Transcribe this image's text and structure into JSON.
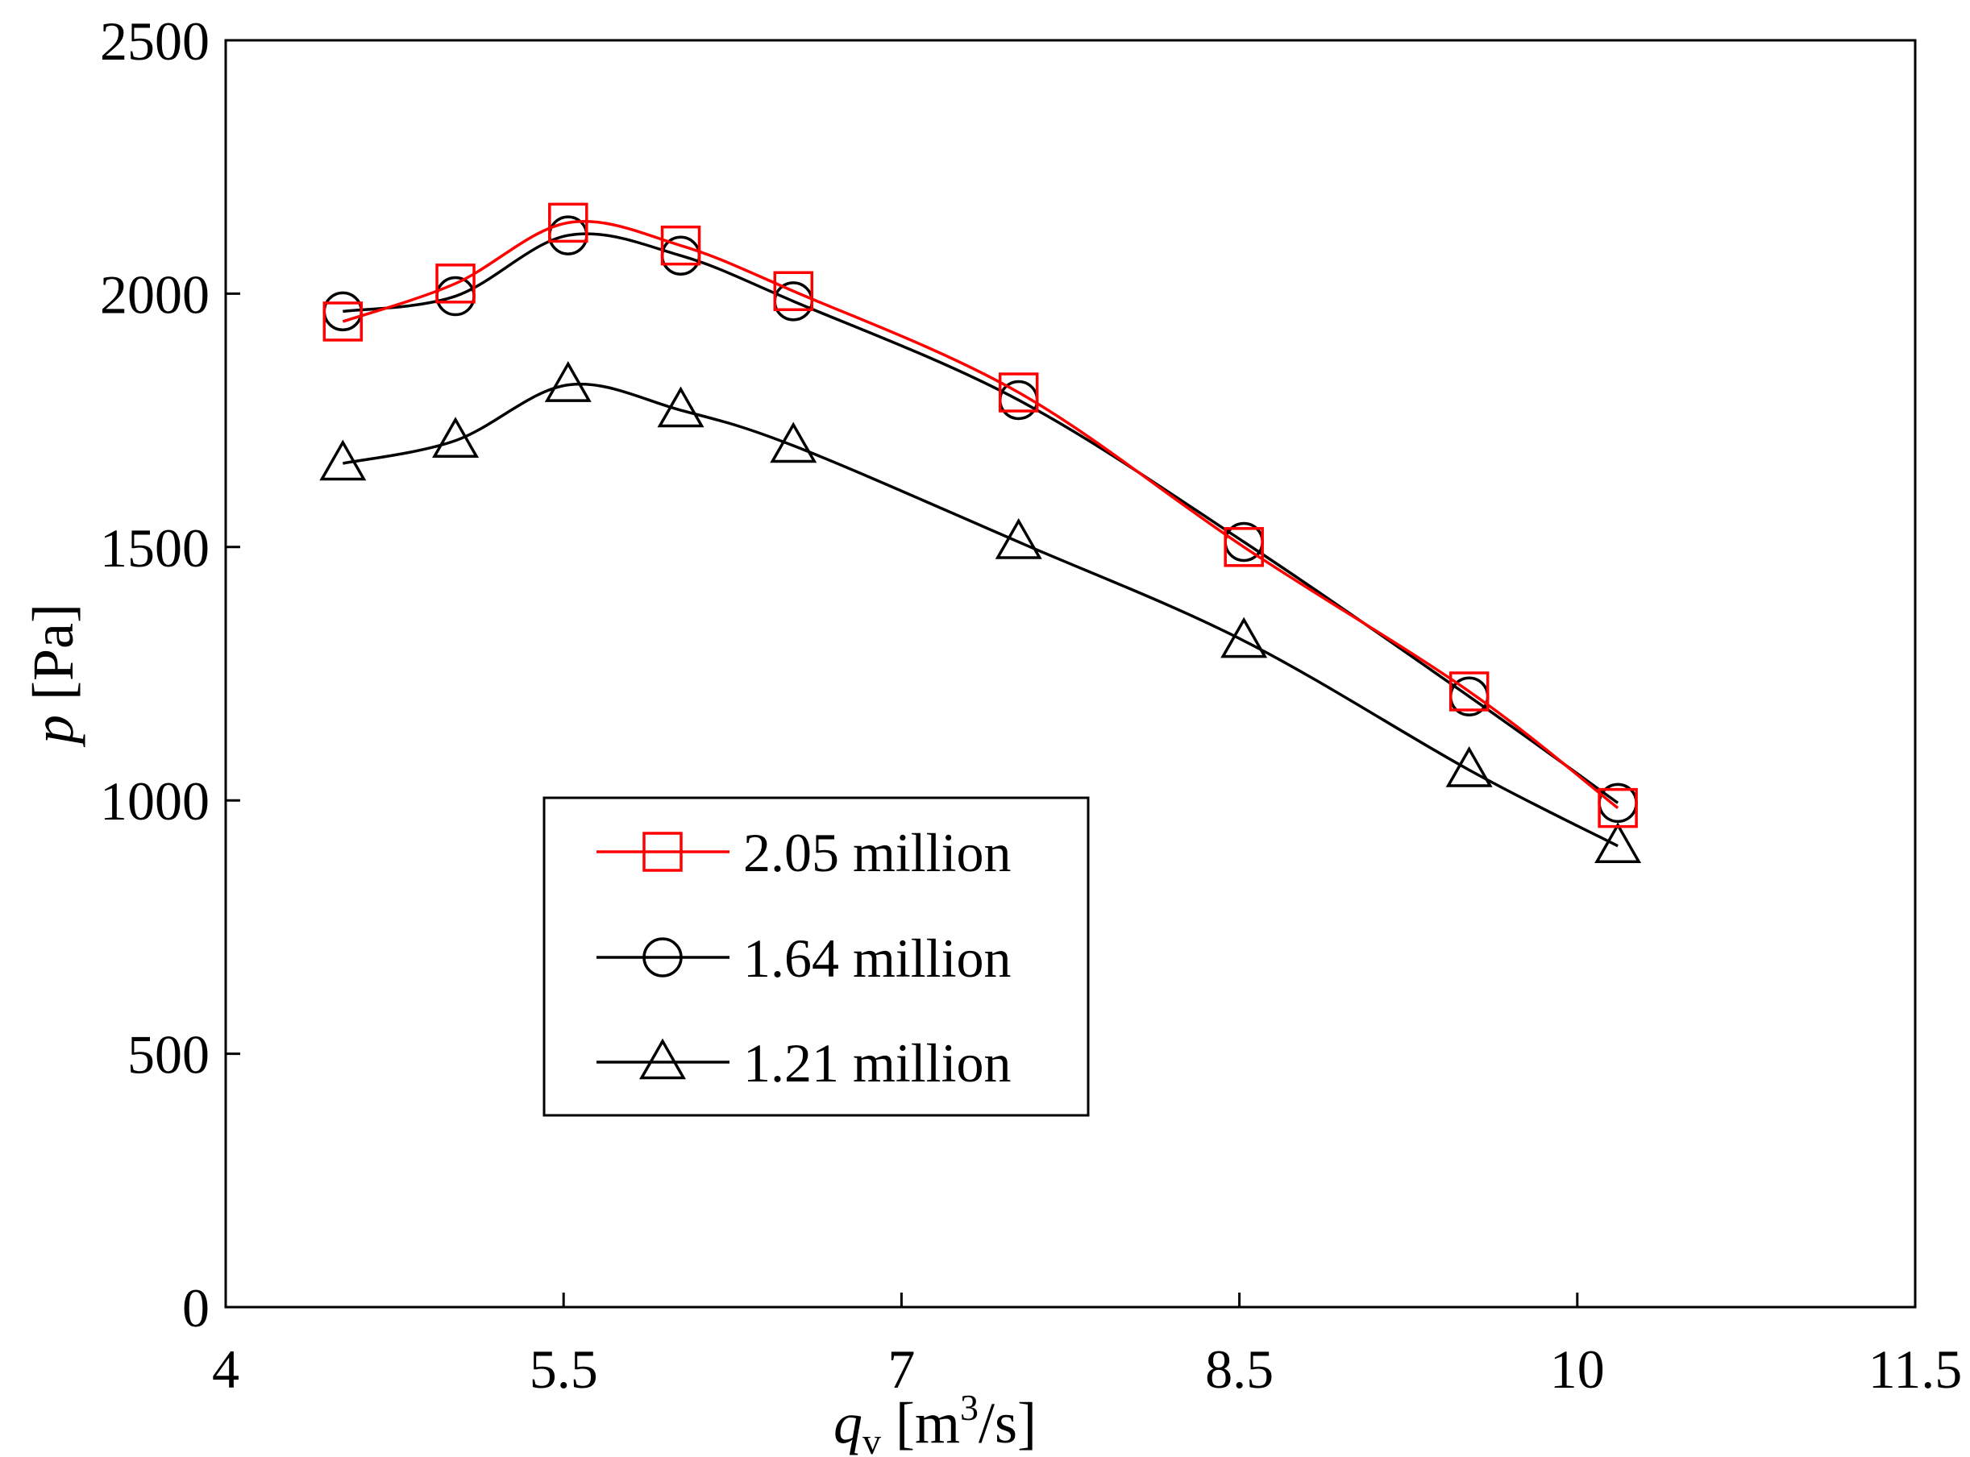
{
  "chart_data": {
    "type": "line",
    "title": "",
    "xlabel": "q",
    "xlabel_subscript": "v",
    "xlabel_unit_open": " [m",
    "xlabel_unit_sup": "3",
    "xlabel_unit_close": "/s]",
    "ylabel": "p",
    "ylabel_unit": " [Pa]",
    "xlim": [
      4,
      11.5
    ],
    "ylim": [
      0,
      2500
    ],
    "xticks": [
      4,
      5.5,
      7,
      8.5,
      10,
      11.5
    ],
    "xtick_labels": [
      "4",
      "5.5",
      "7",
      "8.5",
      "10",
      "11.5"
    ],
    "yticks": [
      0,
      500,
      1000,
      1500,
      2000,
      2500
    ],
    "ytick_labels": [
      "0",
      "500",
      "1000",
      "1500",
      "2000",
      "2500"
    ],
    "grid": false,
    "legend_position": "bottom-left-center",
    "x": [
      4.52,
      5.02,
      5.52,
      6.02,
      6.52,
      7.52,
      8.52,
      9.52,
      10.18
    ],
    "series": [
      {
        "name": "2.05 million",
        "color": "#ff0000",
        "marker": "square",
        "values": [
          1945,
          2020,
          2140,
          2095,
          2005,
          1805,
          1500,
          1215,
          985
        ]
      },
      {
        "name": "1.64 million",
        "color": "#000000",
        "marker": "circle",
        "values": [
          1965,
          1995,
          2115,
          2075,
          1985,
          1790,
          1510,
          1205,
          995
        ]
      },
      {
        "name": "1.21 million",
        "color": "#000000",
        "marker": "triangle",
        "values": [
          1665,
          1710,
          1820,
          1770,
          1700,
          1510,
          1315,
          1060,
          910
        ]
      }
    ]
  }
}
